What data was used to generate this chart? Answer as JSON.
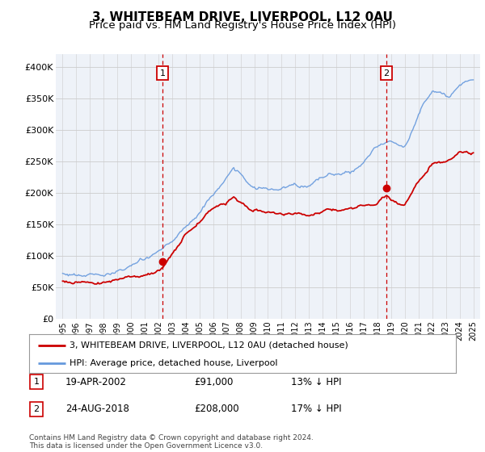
{
  "title": "3, WHITEBEAM DRIVE, LIVERPOOL, L12 0AU",
  "subtitle": "Price paid vs. HM Land Registry's House Price Index (HPI)",
  "ylim": [
    0,
    420000
  ],
  "yticks": [
    0,
    50000,
    100000,
    150000,
    200000,
    250000,
    300000,
    350000,
    400000
  ],
  "ytick_labels": [
    "£0",
    "£50K",
    "£100K",
    "£150K",
    "£200K",
    "£250K",
    "£300K",
    "£350K",
    "£400K"
  ],
  "hpi_color": "#6699dd",
  "price_color": "#cc0000",
  "marker1_date": 2002.3,
  "marker1_price": 91000,
  "marker2_date": 2018.65,
  "marker2_price": 208000,
  "legend_house": "3, WHITEBEAM DRIVE, LIVERPOOL, L12 0AU (detached house)",
  "legend_hpi": "HPI: Average price, detached house, Liverpool",
  "note1_num": "1",
  "note1_date": "19-APR-2002",
  "note1_price": "£91,000",
  "note1_hpi": "13% ↓ HPI",
  "note2_num": "2",
  "note2_date": "24-AUG-2018",
  "note2_price": "£208,000",
  "note2_hpi": "17% ↓ HPI",
  "footer": "Contains HM Land Registry data © Crown copyright and database right 2024.\nThis data is licensed under the Open Government Licence v3.0.",
  "title_fontsize": 11,
  "subtitle_fontsize": 9.5,
  "background_color": "#ffffff",
  "plot_bg_color": "#eef2f8"
}
